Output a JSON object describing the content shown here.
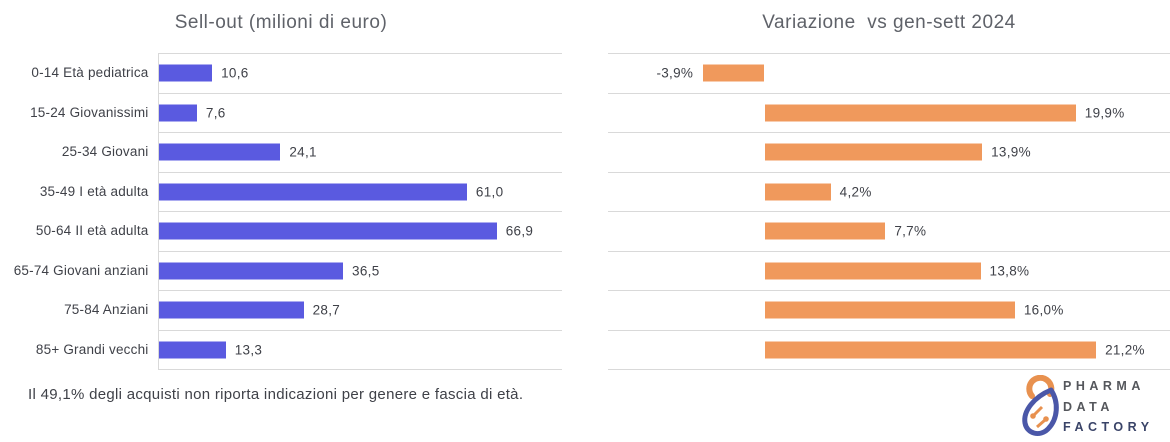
{
  "chart_data": [
    {
      "type": "bar",
      "orientation": "horizontal",
      "title": "Sell-out (milioni di euro)",
      "xlabel": "",
      "ylabel": "",
      "categories": [
        "0-14 Età pediatrica",
        "15-24 Giovanissimi",
        "25-34 Giovani",
        "35-49 I età adulta",
        "50-64 II età adulta",
        "65-74 Giovani anziani",
        "75-84 Anziani",
        "85+ Grandi vecchi"
      ],
      "values": [
        10.6,
        7.6,
        24.1,
        61.0,
        66.9,
        36.5,
        28.7,
        13.3
      ],
      "value_labels": [
        "10,6",
        "7,6",
        "24,1",
        "61,0",
        "66,9",
        "36,5",
        "28,7",
        "13,3"
      ],
      "xlim": [
        0,
        80
      ],
      "bar_color": "#5a5ae0",
      "grid": "horizontal-row-separators",
      "legend": "none",
      "show_category_labels": true
    },
    {
      "type": "bar",
      "orientation": "horizontal",
      "title": "Variazione  vs gen-sett 2024",
      "xlabel": "",
      "ylabel": "",
      "categories": [
        "0-14 Età pediatrica",
        "15-24 Giovanissimi",
        "25-34 Giovani",
        "35-49 I età adulta",
        "50-64 II età adulta",
        "65-74 Giovani anziani",
        "75-84 Anziani",
        "85+ Grandi vecchi"
      ],
      "values": [
        -3.9,
        19.9,
        13.9,
        4.2,
        7.7,
        13.8,
        16.0,
        21.2
      ],
      "value_labels": [
        "-3,9%",
        "19,9%",
        "13,9%",
        "4,2%",
        "7,7%",
        "13,8%",
        "16,0%",
        "21,2%"
      ],
      "xlim": [
        -10,
        26
      ],
      "bar_color": "#f0995c",
      "grid": "horizontal-row-separators",
      "legend": "none",
      "show_category_labels": false
    }
  ],
  "footnote": "Il 49,1% degli acquisti non riporta indicazioni per genere e fascia di età.",
  "logo": {
    "lines": [
      "PHARMA",
      "DATA",
      "FACTORY"
    ]
  },
  "colors": {
    "sellout_bar": "#5a5ae0",
    "variation_bar": "#f0995c",
    "gridline": "#d9d9d9",
    "title_text": "#5f6269",
    "body_text": "#3f4148",
    "logo_orange": "#e8914f",
    "logo_blue": "#4a57a8",
    "logo_navy_text": "#3a4468"
  }
}
